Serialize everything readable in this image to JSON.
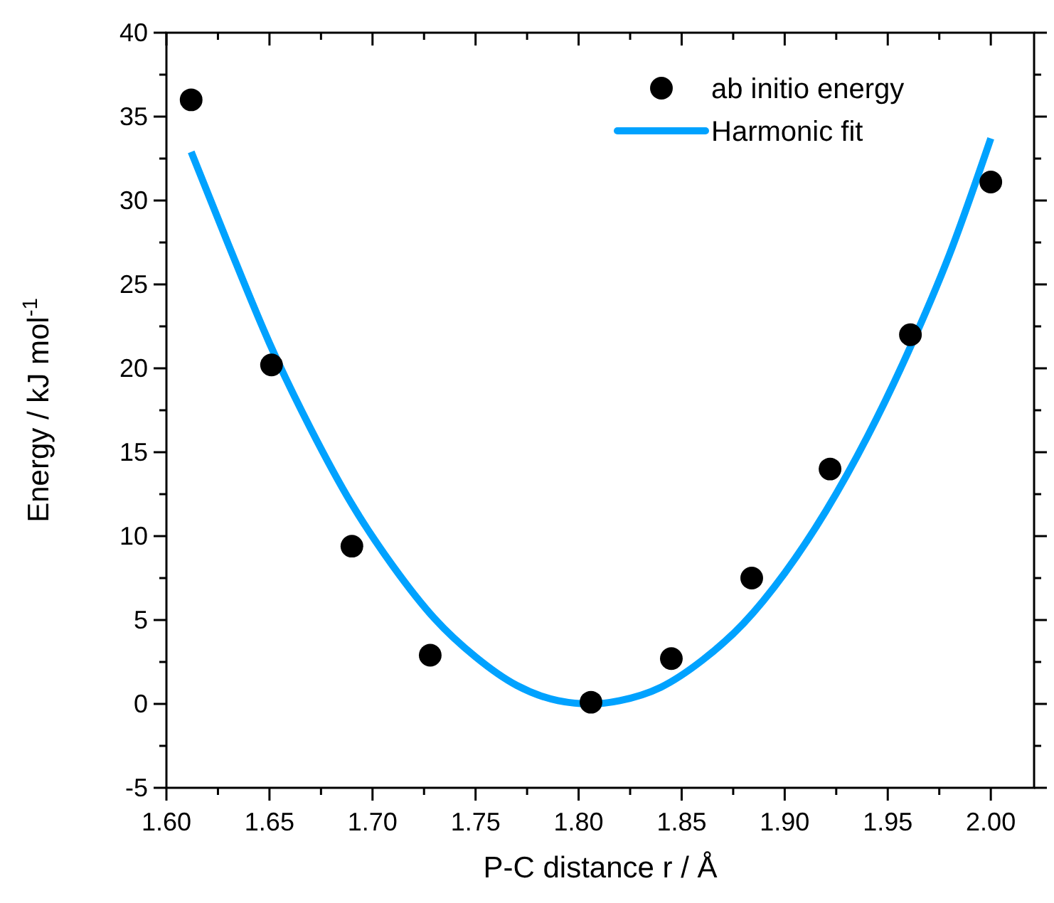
{
  "chart_data": {
    "type": "scatter",
    "xlabel": "P-C distance r / Å",
    "ylabel": "Energy / kJ mol$^{-1}$",
    "xlim": [
      1.6,
      2.021
    ],
    "ylim": [
      -5,
      40
    ],
    "xticks": [
      {
        "value": 1.6,
        "label": "1.60"
      },
      {
        "value": 1.625,
        "label": null
      },
      {
        "value": 1.65,
        "label": "1.65"
      },
      {
        "value": 1.675,
        "label": null
      },
      {
        "value": 1.7,
        "label": "1.70"
      },
      {
        "value": 1.725,
        "label": null
      },
      {
        "value": 1.75,
        "label": "1.75"
      },
      {
        "value": 1.775,
        "label": null
      },
      {
        "value": 1.8,
        "label": "1.80"
      },
      {
        "value": 1.825,
        "label": null
      },
      {
        "value": 1.85,
        "label": "1.85"
      },
      {
        "value": 1.875,
        "label": null
      },
      {
        "value": 1.9,
        "label": "1.90"
      },
      {
        "value": 1.925,
        "label": null
      },
      {
        "value": 1.95,
        "label": "1.95"
      },
      {
        "value": 1.975,
        "label": null
      },
      {
        "value": 2.0,
        "label": "2.00"
      }
    ],
    "yticks": [
      -5,
      {
        "value": -2.5,
        "label": null
      },
      0,
      {
        "value": 2.5,
        "label": null
      },
      5,
      {
        "value": 7.5,
        "label": null
      },
      10,
      {
        "value": 12.5,
        "label": null
      },
      15,
      {
        "value": 17.5,
        "label": null
      },
      20,
      {
        "value": 22.5,
        "label": null
      },
      25,
      {
        "value": 27.5,
        "label": null
      },
      30,
      {
        "value": 32.5,
        "label": null
      },
      35,
      {
        "value": 37.5,
        "label": null
      },
      40
    ],
    "grid": false,
    "legend": "top right",
    "series": [
      {
        "name": "ab initio energy",
        "marker": "circle",
        "color": "#000000",
        "x": [
          1.612,
          1.651,
          1.69,
          1.728,
          1.806,
          1.845,
          1.884,
          1.922,
          1.961,
          2.0
        ],
        "values": [
          36.0,
          20.2,
          9.4,
          2.9,
          0.1,
          2.7,
          7.5,
          14.0,
          22.0,
          31.1
        ]
      },
      {
        "name": "Harmonic fit",
        "type": "line",
        "marker": "none",
        "color": "#00a2ff",
        "x": [
          1.612,
          1.63,
          1.65,
          1.67,
          1.69,
          1.71,
          1.73,
          1.75,
          1.77,
          1.79,
          1.806,
          1.82,
          1.84,
          1.86,
          1.88,
          1.9,
          1.92,
          1.94,
          1.96,
          1.98,
          2.0
        ],
        "values": [
          32.9,
          27.4,
          21.5,
          16.4,
          11.9,
          8.2,
          5.1,
          2.8,
          1.1,
          0.2,
          0,
          0.2,
          1.0,
          2.6,
          4.8,
          7.8,
          11.5,
          15.9,
          21.0,
          26.8,
          33.7
        ]
      }
    ]
  }
}
